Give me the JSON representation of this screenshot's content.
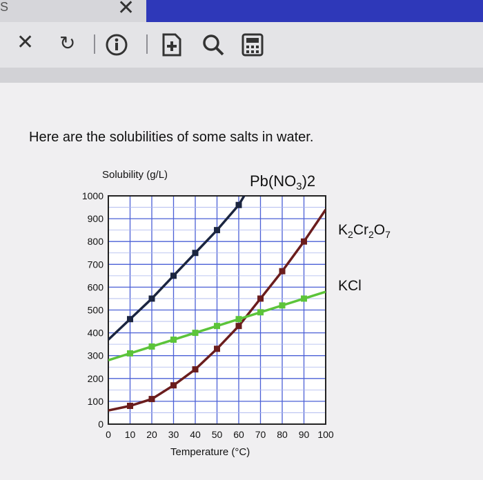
{
  "browser": {
    "tab_fragment": "S",
    "tab_close_glyph": "✕",
    "toolbar": {
      "icons": [
        "close-icon",
        "reload-icon",
        "info-icon",
        "add-page-icon",
        "search-icon",
        "calculator-icon"
      ],
      "close_glyph": "✕",
      "reload_glyph": "↻"
    },
    "accent_color": "#2e38b9"
  },
  "question": {
    "text": "Here are the solubilities of some salts in water."
  },
  "chart_data": {
    "type": "line",
    "ylabel": "Solubility (g/L)",
    "xlabel": "Temperature (°C)",
    "xlim": [
      0,
      100
    ],
    "ylim": [
      0,
      1000
    ],
    "x_ticks": [
      0,
      10,
      20,
      30,
      40,
      50,
      60,
      70,
      80,
      90,
      100
    ],
    "y_ticks": [
      0,
      100,
      200,
      300,
      400,
      500,
      600,
      700,
      800,
      900,
      1000
    ],
    "x_tick_labels": [
      "0",
      "10",
      "20",
      "30",
      "40",
      "50",
      "60",
      "70",
      "80",
      "90",
      "100"
    ],
    "y_tick_labels": [
      "0",
      "100",
      "200",
      "300",
      "400",
      "500",
      "600",
      "700",
      "800",
      "900",
      "1000"
    ],
    "grid": true,
    "series": [
      {
        "name_parts": [
          "Pb(NO",
          "3",
          ")2"
        ],
        "color": "#1b2540",
        "x": [
          0,
          10,
          20,
          30,
          40,
          50,
          60,
          62.5
        ],
        "y": [
          370,
          460,
          550,
          650,
          750,
          850,
          960,
          1000
        ]
      },
      {
        "name_parts": [
          "K",
          "2",
          "Cr",
          "2",
          "O",
          "7"
        ],
        "color": "#6b1d1d",
        "x": [
          0,
          10,
          20,
          30,
          40,
          50,
          60,
          70,
          80,
          90,
          100
        ],
        "y": [
          60,
          80,
          110,
          170,
          240,
          330,
          430,
          550,
          670,
          800,
          940
        ]
      },
      {
        "name": "KCl",
        "color": "#5cc43a",
        "x": [
          0,
          10,
          20,
          30,
          40,
          50,
          60,
          70,
          80,
          90,
          100
        ],
        "y": [
          280,
          310,
          340,
          370,
          400,
          430,
          460,
          490,
          520,
          550,
          580
        ]
      }
    ]
  }
}
